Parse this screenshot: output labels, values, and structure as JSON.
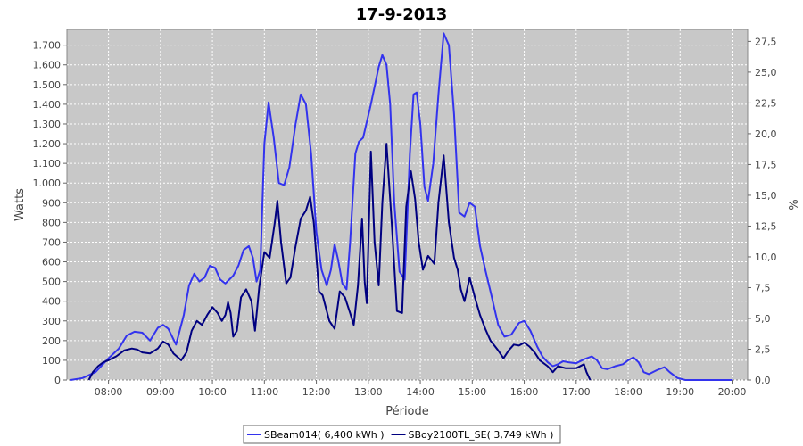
{
  "chart_data": {
    "type": "line",
    "title": "17-9-2013",
    "xlabel": "Période",
    "ylabel": "Watts",
    "y2label": "%",
    "xlim": [
      7.2,
      20.3
    ],
    "ylim": [
      0,
      1780
    ],
    "y2lim": [
      0,
      28.47
    ],
    "x_ticks": [
      8,
      9,
      10,
      11,
      12,
      13,
      14,
      15,
      16,
      17,
      18,
      19,
      20
    ],
    "x_tick_labels": [
      "08:00",
      "09:00",
      "10:00",
      "11:00",
      "12:00",
      "13:00",
      "14:00",
      "15:00",
      "16:00",
      "17:00",
      "18:00",
      "19:00",
      "20:00"
    ],
    "y_ticks": [
      0,
      100,
      200,
      300,
      400,
      500,
      600,
      700,
      800,
      900,
      1000,
      1100,
      1200,
      1300,
      1400,
      1500,
      1600,
      1700
    ],
    "y_tick_labels": [
      "0",
      "100",
      "200",
      "300",
      "400",
      "500",
      "600",
      "700",
      "800",
      "900",
      "1.000",
      "1.100",
      "1.200",
      "1.300",
      "1.400",
      "1.500",
      "1.600",
      "1.700"
    ],
    "y2_ticks": [
      0,
      2.5,
      5,
      7.5,
      10,
      12.5,
      15,
      17.5,
      20,
      22.5,
      25,
      27.5
    ],
    "y2_tick_labels": [
      "0,0",
      "2,5",
      "5,0",
      "7,5",
      "10,0",
      "12,5",
      "15,0",
      "17,5",
      "20,0",
      "22,5",
      "25,0",
      "27,5"
    ],
    "grid": true,
    "legend_position": "bottom-center",
    "series": [
      {
        "name": "SBeam014( 6,400 kWh )",
        "color": "#3333ee",
        "points": [
          [
            7.27,
            0
          ],
          [
            7.5,
            10
          ],
          [
            7.75,
            40
          ],
          [
            8.0,
            110
          ],
          [
            8.2,
            160
          ],
          [
            8.35,
            225
          ],
          [
            8.5,
            245
          ],
          [
            8.65,
            240
          ],
          [
            8.8,
            200
          ],
          [
            8.95,
            265
          ],
          [
            9.05,
            280
          ],
          [
            9.15,
            260
          ],
          [
            9.3,
            180
          ],
          [
            9.45,
            330
          ],
          [
            9.55,
            480
          ],
          [
            9.65,
            540
          ],
          [
            9.75,
            500
          ],
          [
            9.85,
            520
          ],
          [
            9.95,
            580
          ],
          [
            10.05,
            570
          ],
          [
            10.15,
            510
          ],
          [
            10.25,
            490
          ],
          [
            10.4,
            530
          ],
          [
            10.5,
            580
          ],
          [
            10.6,
            660
          ],
          [
            10.7,
            680
          ],
          [
            10.78,
            620
          ],
          [
            10.85,
            500
          ],
          [
            10.92,
            560
          ],
          [
            11.0,
            1200
          ],
          [
            11.08,
            1410
          ],
          [
            11.18,
            1230
          ],
          [
            11.28,
            1000
          ],
          [
            11.38,
            990
          ],
          [
            11.48,
            1080
          ],
          [
            11.6,
            1300
          ],
          [
            11.7,
            1450
          ],
          [
            11.8,
            1400
          ],
          [
            11.9,
            1150
          ],
          [
            12.0,
            750
          ],
          [
            12.1,
            560
          ],
          [
            12.2,
            480
          ],
          [
            12.28,
            560
          ],
          [
            12.35,
            690
          ],
          [
            12.42,
            610
          ],
          [
            12.5,
            490
          ],
          [
            12.58,
            460
          ],
          [
            12.65,
            700
          ],
          [
            12.75,
            1150
          ],
          [
            12.82,
            1210
          ],
          [
            12.9,
            1230
          ],
          [
            13.05,
            1400
          ],
          [
            13.2,
            1590
          ],
          [
            13.27,
            1650
          ],
          [
            13.35,
            1600
          ],
          [
            13.42,
            1400
          ],
          [
            13.5,
            900
          ],
          [
            13.6,
            550
          ],
          [
            13.7,
            510
          ],
          [
            13.8,
            1150
          ],
          [
            13.87,
            1450
          ],
          [
            13.93,
            1460
          ],
          [
            14.0,
            1300
          ],
          [
            14.08,
            980
          ],
          [
            14.15,
            910
          ],
          [
            14.25,
            1100
          ],
          [
            14.35,
            1450
          ],
          [
            14.45,
            1760
          ],
          [
            14.55,
            1700
          ],
          [
            14.65,
            1350
          ],
          [
            14.75,
            850
          ],
          [
            14.85,
            830
          ],
          [
            14.95,
            900
          ],
          [
            15.05,
            880
          ],
          [
            15.15,
            680
          ],
          [
            15.25,
            560
          ],
          [
            15.35,
            450
          ],
          [
            15.5,
            280
          ],
          [
            15.62,
            220
          ],
          [
            15.75,
            230
          ],
          [
            15.9,
            290
          ],
          [
            16.0,
            300
          ],
          [
            16.12,
            250
          ],
          [
            16.25,
            170
          ],
          [
            16.35,
            120
          ],
          [
            16.45,
            90
          ],
          [
            16.55,
            70
          ],
          [
            16.65,
            80
          ],
          [
            16.75,
            95
          ],
          [
            16.85,
            90
          ],
          [
            17.0,
            85
          ],
          [
            17.15,
            105
          ],
          [
            17.3,
            120
          ],
          [
            17.4,
            100
          ],
          [
            17.5,
            60
          ],
          [
            17.6,
            55
          ],
          [
            17.75,
            70
          ],
          [
            17.9,
            80
          ],
          [
            18.0,
            100
          ],
          [
            18.1,
            115
          ],
          [
            18.2,
            90
          ],
          [
            18.3,
            40
          ],
          [
            18.4,
            30
          ],
          [
            18.55,
            50
          ],
          [
            18.7,
            65
          ],
          [
            18.8,
            40
          ],
          [
            18.95,
            10
          ],
          [
            19.1,
            0
          ],
          [
            20.0,
            0
          ]
        ]
      },
      {
        "name": "SBoy2100TL_SE( 3,749 kWh )",
        "color": "#000080",
        "points": [
          [
            7.62,
            0
          ],
          [
            7.7,
            40
          ],
          [
            7.8,
            70
          ],
          [
            7.9,
            90
          ],
          [
            8.0,
            100
          ],
          [
            8.15,
            120
          ],
          [
            8.3,
            150
          ],
          [
            8.45,
            160
          ],
          [
            8.55,
            155
          ],
          [
            8.65,
            140
          ],
          [
            8.8,
            135
          ],
          [
            8.95,
            160
          ],
          [
            9.05,
            195
          ],
          [
            9.15,
            180
          ],
          [
            9.25,
            135
          ],
          [
            9.4,
            100
          ],
          [
            9.5,
            140
          ],
          [
            9.6,
            250
          ],
          [
            9.7,
            300
          ],
          [
            9.8,
            280
          ],
          [
            9.9,
            330
          ],
          [
            10.0,
            370
          ],
          [
            10.1,
            340
          ],
          [
            10.18,
            300
          ],
          [
            10.25,
            330
          ],
          [
            10.3,
            395
          ],
          [
            10.35,
            340
          ],
          [
            10.4,
            220
          ],
          [
            10.47,
            250
          ],
          [
            10.55,
            420
          ],
          [
            10.65,
            460
          ],
          [
            10.75,
            400
          ],
          [
            10.82,
            250
          ],
          [
            10.9,
            470
          ],
          [
            11.0,
            650
          ],
          [
            11.1,
            620
          ],
          [
            11.2,
            800
          ],
          [
            11.25,
            910
          ],
          [
            11.32,
            700
          ],
          [
            11.42,
            490
          ],
          [
            11.5,
            520
          ],
          [
            11.6,
            680
          ],
          [
            11.7,
            820
          ],
          [
            11.8,
            860
          ],
          [
            11.88,
            930
          ],
          [
            11.95,
            800
          ],
          [
            12.05,
            450
          ],
          [
            12.12,
            430
          ],
          [
            12.25,
            300
          ],
          [
            12.35,
            260
          ],
          [
            12.45,
            450
          ],
          [
            12.55,
            420
          ],
          [
            12.65,
            340
          ],
          [
            12.72,
            280
          ],
          [
            12.8,
            480
          ],
          [
            12.88,
            820
          ],
          [
            12.93,
            500
          ],
          [
            12.97,
            390
          ],
          [
            13.05,
            1160
          ],
          [
            13.12,
            700
          ],
          [
            13.2,
            480
          ],
          [
            13.27,
            900
          ],
          [
            13.35,
            1200
          ],
          [
            13.45,
            800
          ],
          [
            13.55,
            350
          ],
          [
            13.65,
            340
          ],
          [
            13.73,
            880
          ],
          [
            13.82,
            1060
          ],
          [
            13.9,
            920
          ],
          [
            13.97,
            700
          ],
          [
            14.05,
            560
          ],
          [
            14.15,
            630
          ],
          [
            14.27,
            590
          ],
          [
            14.35,
            900
          ],
          [
            14.45,
            1140
          ],
          [
            14.55,
            800
          ],
          [
            14.65,
            620
          ],
          [
            14.72,
            560
          ],
          [
            14.78,
            460
          ],
          [
            14.85,
            400
          ],
          [
            14.95,
            520
          ],
          [
            15.05,
            420
          ],
          [
            15.15,
            330
          ],
          [
            15.25,
            260
          ],
          [
            15.35,
            200
          ],
          [
            15.5,
            150
          ],
          [
            15.6,
            110
          ],
          [
            15.7,
            150
          ],
          [
            15.8,
            180
          ],
          [
            15.9,
            175
          ],
          [
            16.0,
            190
          ],
          [
            16.1,
            170
          ],
          [
            16.2,
            140
          ],
          [
            16.3,
            100
          ],
          [
            16.45,
            70
          ],
          [
            16.55,
            40
          ],
          [
            16.65,
            70
          ],
          [
            16.8,
            60
          ],
          [
            17.0,
            60
          ],
          [
            17.15,
            80
          ],
          [
            17.2,
            40
          ],
          [
            17.27,
            0
          ]
        ]
      }
    ]
  }
}
